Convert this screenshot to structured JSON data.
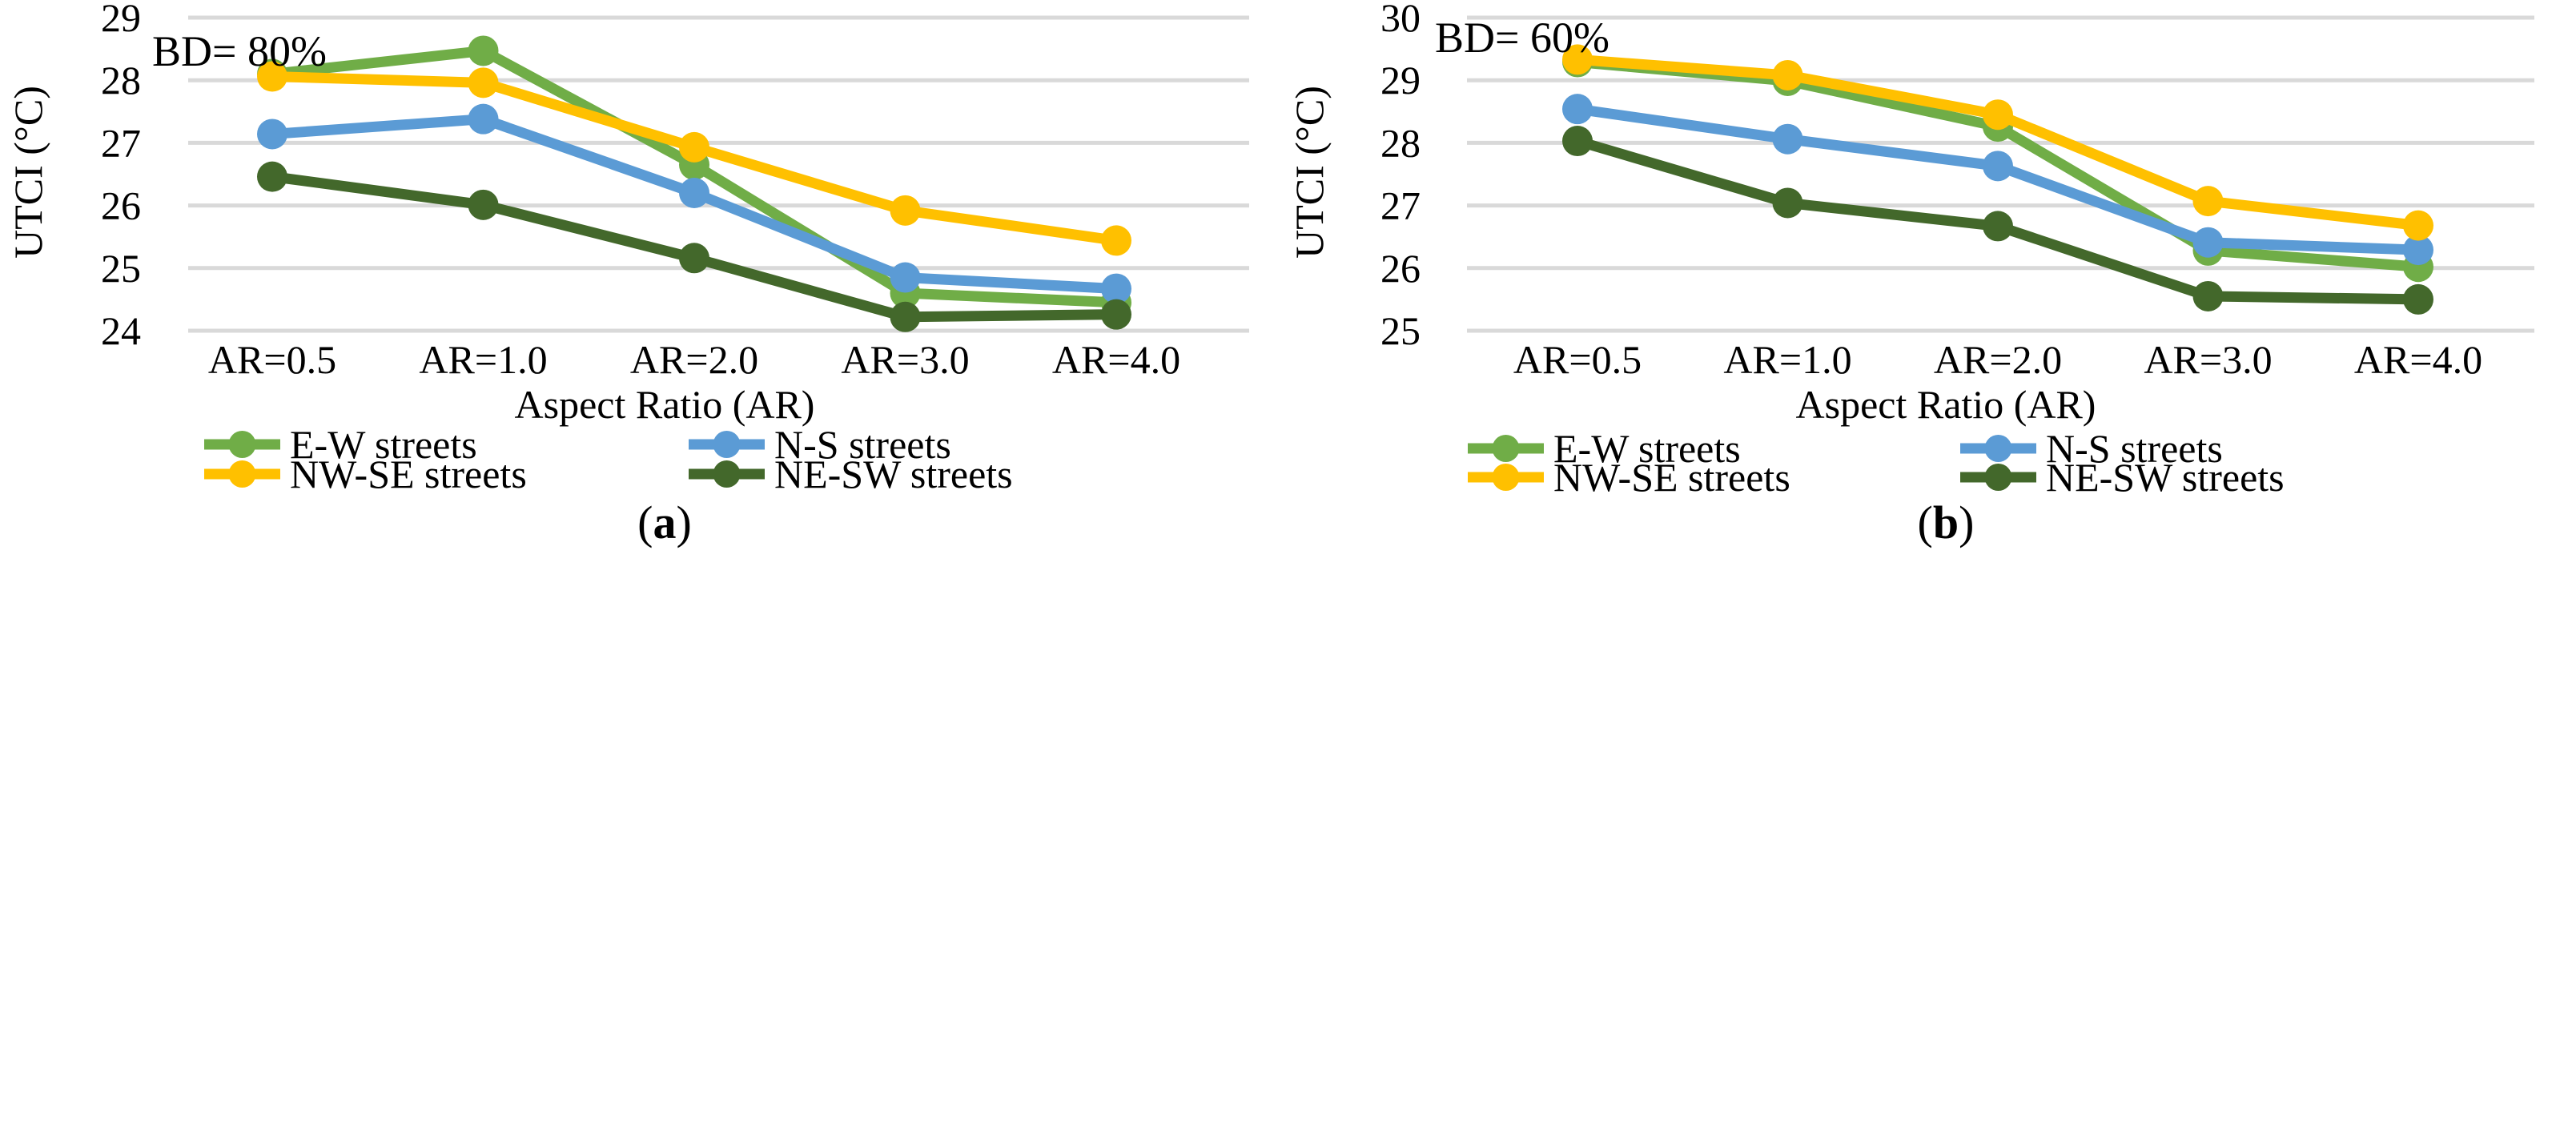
{
  "chart_data": [
    {
      "type": "line",
      "panel_label": "a",
      "annotation": "BD= 80%",
      "categories": [
        "AR=0.5",
        "AR=1.0",
        "AR=2.0",
        "AR=3.0",
        "AR=4.0"
      ],
      "xlabel": "Aspect Ratio (AR)",
      "ylabel": "UTCI (°C)",
      "ylim": [
        24,
        29
      ],
      "yticks": [
        24,
        25,
        26,
        27,
        28,
        29
      ],
      "grid": true,
      "legend": "bottom",
      "series": [
        {
          "name": "E-W streets",
          "color": "#70AD47",
          "values": [
            28.1,
            28.47,
            26.65,
            24.6,
            24.45
          ]
        },
        {
          "name": "N-S streets",
          "color": "#5B9BD5",
          "values": [
            27.14,
            27.38,
            26.2,
            24.85,
            24.67
          ]
        },
        {
          "name": "NW-SE streets",
          "color": "#FFC000",
          "values": [
            28.06,
            27.96,
            26.93,
            25.92,
            25.44
          ]
        },
        {
          "name": "NE-SW streets",
          "color": "#43682B",
          "values": [
            26.46,
            26.01,
            25.16,
            24.22,
            24.26
          ]
        }
      ]
    },
    {
      "type": "line",
      "panel_label": "b",
      "annotation": "BD= 60%",
      "categories": [
        "AR=0.5",
        "AR=1.0",
        "AR=2.0",
        "AR=3.0",
        "AR=4.0"
      ],
      "xlabel": "Aspect Ratio (AR)",
      "ylabel": "UTCI (°C)",
      "ylim": [
        25,
        30
      ],
      "yticks": [
        25,
        26,
        27,
        28,
        29,
        30
      ],
      "grid": true,
      "legend": "bottom",
      "series": [
        {
          "name": "E-W streets",
          "color": "#70AD47",
          "values": [
            29.29,
            28.99,
            28.26,
            26.28,
            26.02
          ]
        },
        {
          "name": "N-S streets",
          "color": "#5B9BD5",
          "values": [
            28.54,
            28.06,
            27.63,
            26.41,
            26.29
          ]
        },
        {
          "name": "NW-SE streets",
          "color": "#FFC000",
          "values": [
            29.33,
            29.08,
            28.45,
            27.07,
            26.68
          ]
        },
        {
          "name": "NE-SW streets",
          "color": "#43682B",
          "values": [
            28.03,
            27.04,
            26.67,
            25.55,
            25.5
          ]
        }
      ]
    }
  ]
}
